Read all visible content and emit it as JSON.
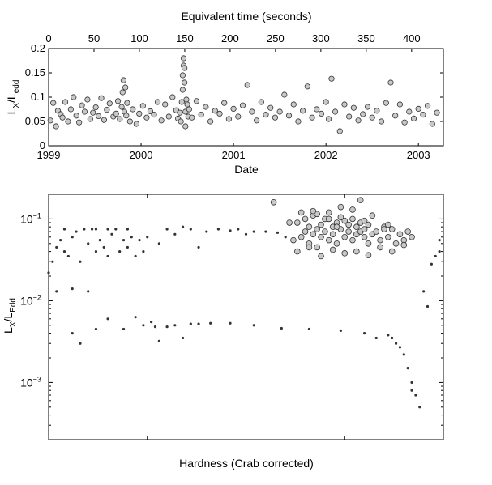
{
  "panels": [
    {
      "id": "top",
      "top_axis_label": "Equivalent time (seconds)",
      "top_tick_labels": [
        "0",
        "50",
        "100",
        "150",
        "200",
        "250",
        "300",
        "350",
        "400"
      ],
      "ylabel_main": "L",
      "ylabel_sub1": "X",
      "ylabel_mid": "/L",
      "ylabel_sub2": "edd",
      "y_tick_labels": [
        "0",
        "0.05",
        "0.1",
        "0.15",
        "0.2"
      ],
      "x_tick_labels": [
        "1999",
        "2000",
        "2001",
        "2002",
        "2003"
      ],
      "xlabel": "Date"
    },
    {
      "id": "bottom",
      "ylabel_main": "L",
      "ylabel_sub1": "X",
      "ylabel_mid": "/L",
      "ylabel_sub2": "Edd",
      "y_tick_base": "10",
      "y_tick_exponents": [
        "−1",
        "−2",
        "−3"
      ],
      "xlabel": "Hardness (Crab corrected)"
    }
  ],
  "chart_data": [
    {
      "type": "scatter",
      "marker": "open circle, gray fill",
      "x_axis": "date (years)",
      "xlim": [
        1999.0,
        2003.27
      ],
      "top_axis": "equivalent time (seconds)",
      "top_xlim": [
        0,
        435
      ],
      "ylim": [
        0,
        0.2
      ],
      "x": [
        1999.02,
        1999.05,
        1999.08,
        1999.1,
        1999.13,
        1999.15,
        1999.18,
        1999.21,
        1999.24,
        1999.27,
        1999.3,
        1999.33,
        1999.36,
        1999.39,
        1999.42,
        1999.45,
        1999.48,
        1999.51,
        1999.54,
        1999.57,
        1999.6,
        1999.63,
        1999.66,
        1999.7,
        1999.73,
        1999.75,
        1999.77,
        1999.79,
        1999.8,
        1999.81,
        1999.82,
        1999.83,
        1999.84,
        1999.85,
        1999.88,
        1999.91,
        1999.95,
        1999.98,
        2000.02,
        2000.06,
        2000.1,
        2000.14,
        2000.18,
        2000.22,
        2000.26,
        2000.3,
        2000.34,
        2000.38,
        2000.4,
        2000.42,
        2000.43,
        2000.44,
        2000.45,
        2000.45,
        2000.46,
        2000.46,
        2000.47,
        2000.47,
        2000.48,
        2000.48,
        2000.49,
        2000.5,
        2000.51,
        2000.52,
        2000.55,
        2000.6,
        2000.65,
        2000.7,
        2000.75,
        2000.8,
        2000.85,
        2000.9,
        2000.95,
        2001.0,
        2001.05,
        2001.1,
        2001.15,
        2001.2,
        2001.25,
        2001.3,
        2001.35,
        2001.4,
        2001.45,
        2001.5,
        2001.55,
        2001.6,
        2001.65,
        2001.7,
        2001.75,
        2001.8,
        2001.85,
        2001.9,
        2001.95,
        2002.0,
        2002.03,
        2002.06,
        2002.1,
        2002.15,
        2002.2,
        2002.25,
        2002.3,
        2002.35,
        2002.4,
        2002.45,
        2002.5,
        2002.55,
        2002.6,
        2002.65,
        2002.7,
        2002.75,
        2002.8,
        2002.85,
        2002.9,
        2002.95,
        2003.0,
        2003.05,
        2003.1,
        2003.15,
        2003.2
      ],
      "y": [
        0.052,
        0.088,
        0.04,
        0.072,
        0.065,
        0.058,
        0.09,
        0.05,
        0.075,
        0.1,
        0.062,
        0.048,
        0.083,
        0.07,
        0.095,
        0.055,
        0.068,
        0.079,
        0.061,
        0.098,
        0.053,
        0.074,
        0.087,
        0.06,
        0.066,
        0.092,
        0.055,
        0.08,
        0.11,
        0.135,
        0.07,
        0.12,
        0.062,
        0.088,
        0.05,
        0.075,
        0.045,
        0.066,
        0.082,
        0.058,
        0.071,
        0.064,
        0.09,
        0.052,
        0.085,
        0.06,
        0.1,
        0.073,
        0.056,
        0.068,
        0.05,
        0.09,
        0.115,
        0.145,
        0.165,
        0.18,
        0.16,
        0.13,
        0.07,
        0.04,
        0.095,
        0.085,
        0.06,
        0.075,
        0.058,
        0.092,
        0.064,
        0.08,
        0.05,
        0.072,
        0.066,
        0.088,
        0.055,
        0.076,
        0.06,
        0.083,
        0.125,
        0.07,
        0.052,
        0.09,
        0.064,
        0.078,
        0.058,
        0.07,
        0.105,
        0.062,
        0.085,
        0.05,
        0.072,
        0.122,
        0.058,
        0.075,
        0.066,
        0.09,
        0.055,
        0.138,
        0.07,
        0.03,
        0.085,
        0.06,
        0.078,
        0.052,
        0.065,
        0.08,
        0.058,
        0.072,
        0.05,
        0.088,
        0.13,
        0.062,
        0.085,
        0.048,
        0.07,
        0.056,
        0.076,
        0.064,
        0.082,
        0.045,
        0.068
      ]
    },
    {
      "type": "scatter",
      "series": [
        {
          "name": "",
          "marker": "open circle, gray fill",
          "x": [
            0.62,
            0.63,
            0.64,
            0.65,
            0.65,
            0.66,
            0.66,
            0.67,
            0.67,
            0.68,
            0.68,
            0.69,
            0.69,
            0.7,
            0.7,
            0.71,
            0.71,
            0.72,
            0.72,
            0.73,
            0.73,
            0.74,
            0.74,
            0.75,
            0.75,
            0.76,
            0.76,
            0.77,
            0.77,
            0.78,
            0.78,
            0.79,
            0.79,
            0.8,
            0.8,
            0.81,
            0.81,
            0.82,
            0.82,
            0.83,
            0.84,
            0.85,
            0.86,
            0.87,
            0.88,
            0.89,
            0.9,
            0.91,
            0.63,
            0.66,
            0.69,
            0.72,
            0.75,
            0.78,
            0.81,
            0.84,
            0.87,
            0.9,
            0.57,
            0.64,
            0.71,
            0.77,
            0.61,
            0.68,
            0.74,
            0.8,
            0.86,
            0.92,
            0.67,
            0.73,
            0.79,
            0.85
          ],
          "y": [
            0.055,
            0.09,
            0.06,
            0.07,
            0.1,
            0.05,
            0.08,
            0.065,
            0.11,
            0.045,
            0.075,
            0.085,
            0.06,
            0.1,
            0.07,
            0.055,
            0.12,
            0.08,
            0.065,
            0.09,
            0.05,
            0.075,
            0.14,
            0.06,
            0.095,
            0.07,
            0.085,
            0.055,
            0.1,
            0.065,
            0.08,
            0.07,
            0.09,
            0.06,
            0.075,
            0.05,
            0.085,
            0.065,
            0.11,
            0.07,
            0.055,
            0.08,
            0.06,
            0.075,
            0.05,
            0.065,
            0.055,
            0.07,
            0.04,
            0.045,
            0.035,
            0.042,
            0.038,
            0.04,
            0.036,
            0.045,
            0.04,
            0.048,
            0.16,
            0.12,
            0.1,
            0.13,
            0.09,
            0.115,
            0.105,
            0.095,
            0.085,
            0.06,
            0.125,
            0.08,
            0.17,
            0.075
          ]
        },
        {
          "name": "",
          "marker": "small dot, dark",
          "x": [
            0.0,
            0.01,
            0.02,
            0.02,
            0.03,
            0.04,
            0.04,
            0.05,
            0.06,
            0.06,
            0.07,
            0.08,
            0.09,
            0.1,
            0.1,
            0.11,
            0.12,
            0.12,
            0.13,
            0.14,
            0.15,
            0.15,
            0.16,
            0.17,
            0.18,
            0.19,
            0.2,
            0.2,
            0.21,
            0.22,
            0.23,
            0.24,
            0.25,
            0.28,
            0.3,
            0.32,
            0.34,
            0.36,
            0.38,
            0.4,
            0.43,
            0.46,
            0.48,
            0.5,
            0.52,
            0.55,
            0.58,
            0.6,
            0.06,
            0.08,
            0.12,
            0.15,
            0.19,
            0.22,
            0.24,
            0.26,
            0.27,
            0.28,
            0.3,
            0.32,
            0.34,
            0.36,
            0.38,
            0.41,
            0.46,
            0.52,
            0.59,
            0.66,
            0.74,
            0.8,
            0.83,
            0.86,
            0.87,
            0.88,
            0.89,
            0.9,
            0.91,
            0.92,
            0.92,
            0.93,
            0.94,
            0.95,
            0.96,
            0.97,
            0.98,
            0.99,
            0.99
          ],
          "y": [
            0.022,
            0.03,
            0.045,
            0.013,
            0.055,
            0.04,
            0.075,
            0.035,
            0.06,
            0.014,
            0.07,
            0.03,
            0.075,
            0.05,
            0.013,
            0.075,
            0.04,
            0.075,
            0.055,
            0.045,
            0.075,
            0.035,
            0.065,
            0.075,
            0.04,
            0.055,
            0.045,
            0.075,
            0.06,
            0.035,
            0.055,
            0.04,
            0.06,
            0.05,
            0.075,
            0.065,
            0.08,
            0.075,
            0.045,
            0.07,
            0.075,
            0.072,
            0.075,
            0.065,
            0.07,
            0.07,
            0.068,
            0.06,
            0.004,
            0.003,
            0.0045,
            0.006,
            0.0045,
            0.0063,
            0.005,
            0.0055,
            0.0048,
            0.0032,
            0.0048,
            0.005,
            0.0035,
            0.0052,
            0.0052,
            0.0053,
            0.0053,
            0.005,
            0.0046,
            0.0045,
            0.0043,
            0.004,
            0.0035,
            0.0038,
            0.0035,
            0.003,
            0.0027,
            0.0022,
            0.0015,
            0.001,
            0.0008,
            0.0007,
            0.0005,
            0.013,
            0.0085,
            0.028,
            0.035,
            0.04,
            0.055
          ]
        }
      ],
      "x_scale": "linear (no tick labels)",
      "y_scale": "log",
      "ylim": [
        0.0002,
        0.2
      ]
    }
  ]
}
